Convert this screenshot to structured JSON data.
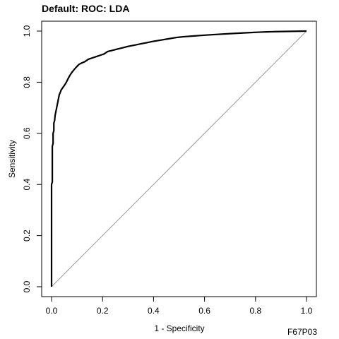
{
  "figure_code": "F67P03",
  "chart_data": {
    "type": "line",
    "title": "Default: ROC: LDA",
    "xlabel": "1 - Specificity",
    "ylabel": "Sensitivity",
    "xlim": [
      0,
      1
    ],
    "ylim": [
      0,
      1
    ],
    "x_ticks": [
      0.0,
      0.2,
      0.4,
      0.6,
      0.8,
      1.0
    ],
    "y_ticks": [
      0.0,
      0.2,
      0.4,
      0.6,
      0.8,
      1.0
    ],
    "x_tick_labels": [
      "0.0",
      "0.2",
      "0.4",
      "0.6",
      "0.8",
      "1.0"
    ],
    "y_tick_labels": [
      "0.0",
      "0.2",
      "0.4",
      "0.6",
      "0.8",
      "1.0"
    ],
    "grid": false,
    "reference_line": {
      "x": [
        0,
        1
      ],
      "y": [
        0,
        1
      ],
      "color": "#999999"
    },
    "series": [
      {
        "color": "#000000",
        "x": [
          0.0,
          0.0,
          0.003,
          0.003,
          0.006,
          0.006,
          0.009,
          0.009,
          0.012,
          0.014,
          0.018,
          0.022,
          0.026,
          0.03,
          0.034,
          0.038,
          0.045,
          0.052,
          0.058,
          0.063,
          0.068,
          0.074,
          0.081,
          0.089,
          0.098,
          0.108,
          0.118,
          0.13,
          0.145,
          0.16,
          0.175,
          0.19,
          0.205,
          0.22,
          0.24,
          0.26,
          0.28,
          0.3,
          0.325,
          0.35,
          0.375,
          0.4,
          0.43,
          0.46,
          0.49,
          0.52,
          0.56,
          0.6,
          0.65,
          0.7,
          0.76,
          0.82,
          0.88,
          0.94,
          1.0
        ],
        "y": [
          0.0,
          0.4,
          0.41,
          0.55,
          0.56,
          0.6,
          0.61,
          0.64,
          0.65,
          0.67,
          0.69,
          0.71,
          0.73,
          0.75,
          0.76,
          0.77,
          0.78,
          0.79,
          0.8,
          0.81,
          0.82,
          0.83,
          0.84,
          0.85,
          0.86,
          0.87,
          0.875,
          0.88,
          0.89,
          0.895,
          0.9,
          0.905,
          0.91,
          0.92,
          0.925,
          0.93,
          0.935,
          0.94,
          0.945,
          0.95,
          0.955,
          0.96,
          0.965,
          0.97,
          0.975,
          0.978,
          0.981,
          0.984,
          0.987,
          0.99,
          0.993,
          0.996,
          0.998,
          0.999,
          1.0
        ]
      }
    ]
  }
}
